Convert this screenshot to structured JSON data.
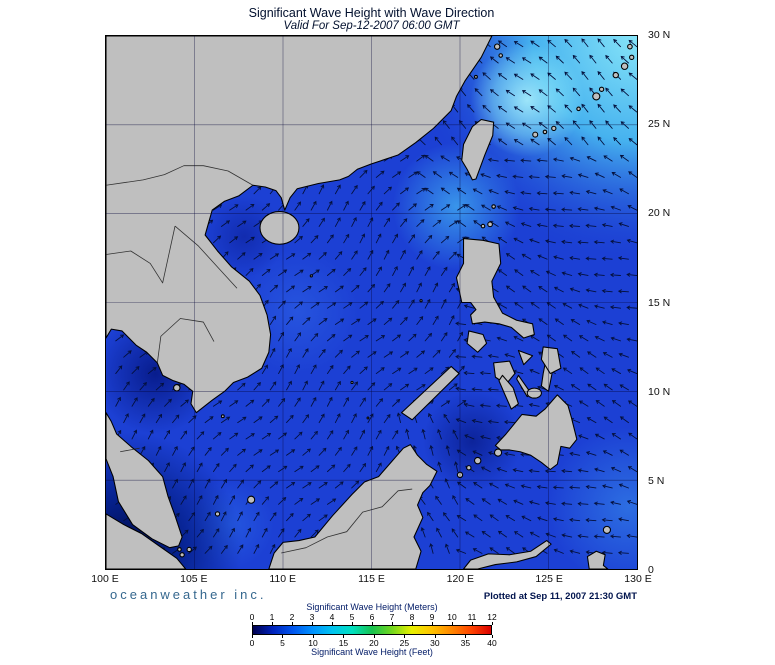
{
  "header": {
    "title": "Significant Wave Height with Wave Direction",
    "subtitle": "Valid For Sep-12-2007 06:00 GMT"
  },
  "footer": {
    "branding": "oceanweather inc.",
    "plotted_at": "Plotted at Sep 11, 2007 21:30 GMT"
  },
  "axes": {
    "x_ticks": [
      "100 E",
      "105 E",
      "110 E",
      "115 E",
      "120 E",
      "125 E",
      "130 E"
    ],
    "y_ticks": [
      "30 N",
      "25 N",
      "20 N",
      "15 N",
      "10 N",
      "5 N",
      "0"
    ]
  },
  "legend": {
    "meters_label": "Significant Wave Height (Meters)",
    "feet_label": "Significant Wave Height (Feet)",
    "meters_ticks": [
      0,
      1,
      2,
      3,
      4,
      5,
      6,
      7,
      8,
      9,
      10,
      11,
      12
    ],
    "feet_ticks": [
      0,
      5,
      10,
      15,
      20,
      25,
      30,
      35,
      40
    ],
    "colors": [
      "#00004f",
      "#0022bb",
      "#0055ee",
      "#0091ff",
      "#00c3f0",
      "#00e0c0",
      "#17c24f",
      "#71d61e",
      "#e8f000",
      "#ffc400",
      "#ff8800",
      "#ff4400",
      "#d90000"
    ],
    "sea_base_color": "#1c40d4",
    "land_color": "#bfbfbf"
  }
}
